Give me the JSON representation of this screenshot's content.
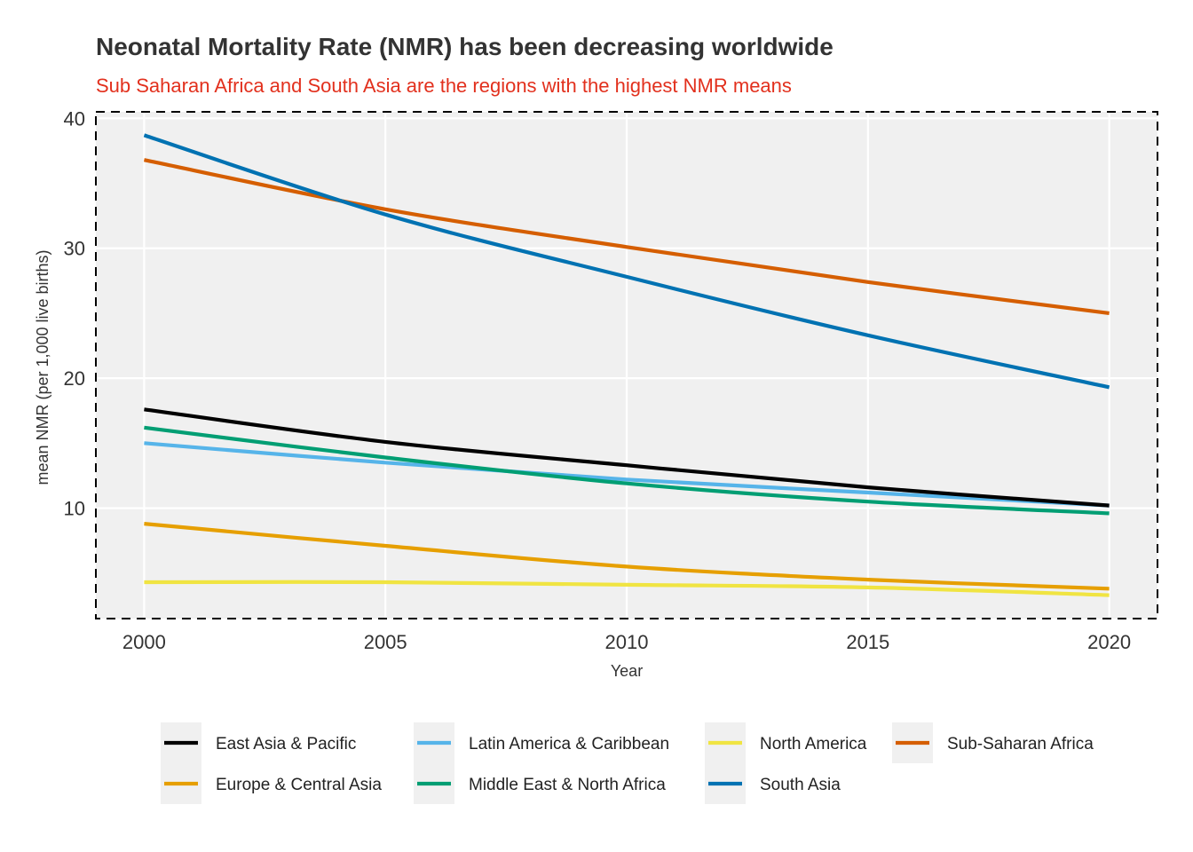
{
  "chart_data": {
    "type": "line",
    "title": "Neonatal Mortality Rate (NMR) has been decreasing worldwide",
    "subtitle": "Sub Saharan Africa and South Asia are the regions with the highest NMR means",
    "xlabel": "Year",
    "ylabel": "mean NMR (per 1,000 live births)",
    "xlim": [
      1999,
      2021
    ],
    "ylim": [
      1.5,
      40.5
    ],
    "xticks": [
      2000,
      2005,
      2010,
      2015,
      2020
    ],
    "yticks": [
      10,
      20,
      30,
      40
    ],
    "grid": true,
    "legend_position": "bottom",
    "x": [
      2000,
      2005,
      2010,
      2015,
      2020
    ],
    "series": [
      {
        "name": "East Asia & Pacific",
        "color": "#000000",
        "values": [
          17.6,
          15.1,
          13.3,
          11.6,
          10.2
        ]
      },
      {
        "name": "Europe & Central Asia",
        "color": "#E69F00",
        "values": [
          8.8,
          7.1,
          5.5,
          4.5,
          3.8
        ]
      },
      {
        "name": "Latin America & Caribbean",
        "color": "#56B4E9",
        "values": [
          15.0,
          13.5,
          12.2,
          11.2,
          10.2
        ]
      },
      {
        "name": "Middle East & North Africa",
        "color": "#009E73",
        "values": [
          16.2,
          13.9,
          11.9,
          10.5,
          9.6
        ]
      },
      {
        "name": "North America",
        "color": "#F0E442",
        "values": [
          4.3,
          4.3,
          4.1,
          3.9,
          3.3
        ]
      },
      {
        "name": "South Asia",
        "color": "#0072B2",
        "values": [
          38.7,
          32.6,
          27.8,
          23.3,
          19.3
        ]
      },
      {
        "name": "Sub-Saharan Africa",
        "color": "#D55E00",
        "values": [
          36.8,
          33.0,
          30.1,
          27.4,
          25.0
        ]
      }
    ]
  }
}
